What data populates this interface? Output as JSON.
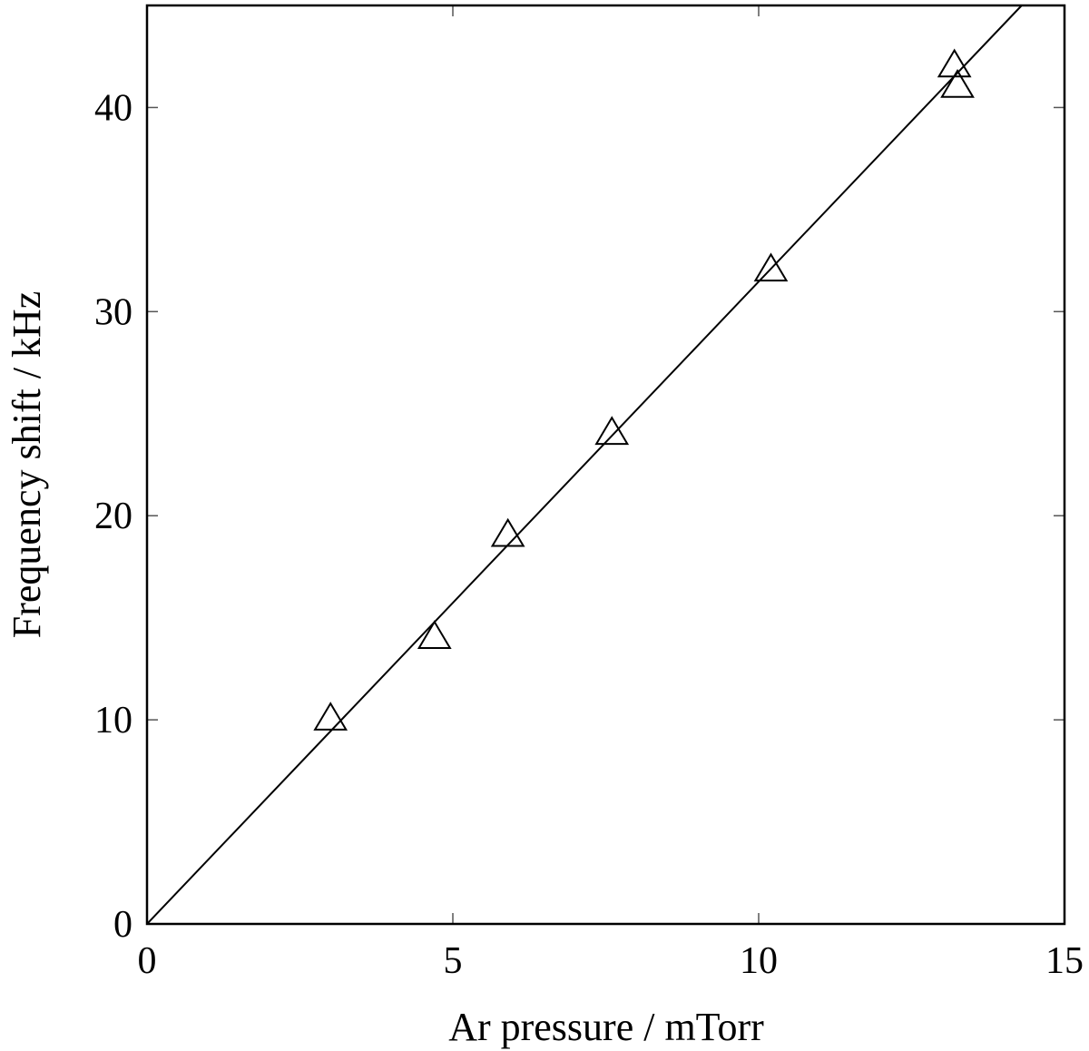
{
  "chart_data": {
    "type": "scatter",
    "xlabel": "Ar pressure / mTorr",
    "ylabel": "Frequency shift / kHz",
    "xlim": [
      0,
      15
    ],
    "ylim": [
      0,
      45
    ],
    "xticks": [
      0,
      5,
      10,
      15
    ],
    "yticks": [
      0,
      10,
      20,
      30,
      40
    ],
    "grid": false,
    "series": [
      {
        "marker": "triangle",
        "points": [
          {
            "x": 3.0,
            "y": 10.0
          },
          {
            "x": 4.7,
            "y": 14.0
          },
          {
            "x": 5.9,
            "y": 19.0
          },
          {
            "x": 7.6,
            "y": 24.0
          },
          {
            "x": 10.2,
            "y": 32.0
          },
          {
            "x": 13.2,
            "y": 42.0
          },
          {
            "x": 13.25,
            "y": 41.0
          }
        ]
      }
    ],
    "fit_line": {
      "x": [
        0,
        14.3
      ],
      "y": [
        0,
        45
      ]
    }
  }
}
